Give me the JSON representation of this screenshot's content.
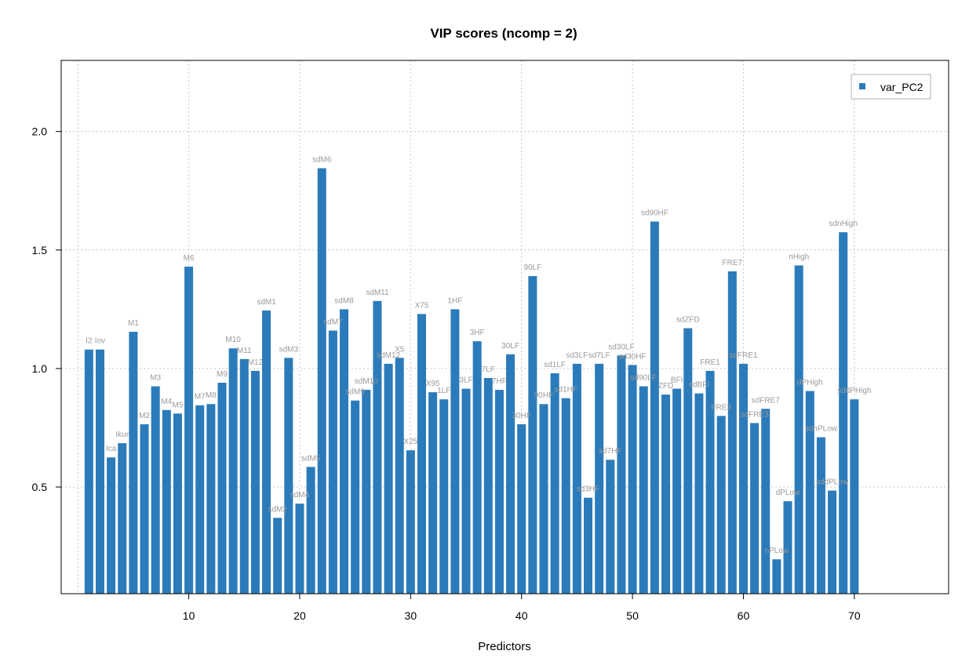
{
  "chart_data": {
    "type": "bar",
    "title": "VIP scores (ncomp = 2)",
    "xlabel": "Predictors",
    "ylabel": "",
    "xlim": [
      -1.5,
      78.5
    ],
    "ylim": [
      0.05,
      2.3
    ],
    "x_ticks": [
      10,
      20,
      30,
      40,
      50,
      60,
      70
    ],
    "y_ticks": [
      0.5,
      1.0,
      1.5,
      2.0
    ],
    "y_tick_labels": [
      "0.5",
      "1.0",
      "1.5",
      "2.0"
    ],
    "grid": true,
    "legend_position": "top-right",
    "series": [
      {
        "name": "var_PC2",
        "color": "#2b7bba",
        "labels": [
          "I2",
          "Iov",
          "Ica",
          "Ikur",
          "M1",
          "M2",
          "M3",
          "M4",
          "M5",
          "M6",
          "M7",
          "M8",
          "M9",
          "M10",
          "M11",
          "M12",
          "sdM1",
          "sdM2",
          "sdM3",
          "sdM4",
          "sdM5",
          "sdM6",
          "sdM7",
          "sdM8",
          "sdM9",
          "sdM10",
          "sdM11",
          "sdM12",
          "X5",
          "X25",
          "X75",
          "X95",
          "1LF",
          "1HF",
          "3LF",
          "3HF",
          "7LF",
          "7HF",
          "30LF",
          "30HF",
          "90LF",
          "90HF",
          "sd1LF",
          "sd1HF",
          "sd3LF",
          "sd3HF",
          "sd7LF",
          "sd7HF",
          "sd30LF",
          "sd30HF",
          "sd90LF",
          "sd90HF",
          "ZFD",
          "BFI",
          "sdZFD",
          "sdBFI",
          "FRE1",
          "FRE3",
          "FRE7",
          "sdFRE1",
          "sdFRE3",
          "sdFRE7",
          "nPLow",
          "dPLow",
          "nHigh",
          "dPHigh",
          "sdnPLow",
          "sddPLow",
          "sdnHigh",
          "sddPHigh"
        ],
        "values": [
          1.08,
          1.08,
          0.625,
          0.685,
          1.155,
          0.765,
          0.925,
          0.825,
          0.81,
          1.43,
          0.845,
          0.85,
          0.94,
          1.085,
          1.04,
          0.99,
          1.245,
          0.37,
          1.045,
          0.43,
          0.585,
          1.845,
          1.16,
          1.25,
          0.865,
          0.91,
          1.285,
          1.02,
          1.045,
          0.655,
          1.23,
          0.9,
          0.87,
          1.25,
          0.915,
          1.115,
          0.96,
          0.91,
          1.06,
          0.765,
          1.39,
          0.85,
          0.98,
          0.875,
          1.02,
          0.455,
          1.02,
          0.615,
          1.055,
          1.015,
          0.925,
          1.62,
          0.89,
          0.915,
          1.17,
          0.895,
          0.99,
          0.8,
          1.41,
          1.02,
          0.77,
          0.83,
          0.195,
          0.44,
          1.435,
          0.905,
          0.71,
          0.485,
          1.575,
          0.87
        ]
      }
    ]
  }
}
